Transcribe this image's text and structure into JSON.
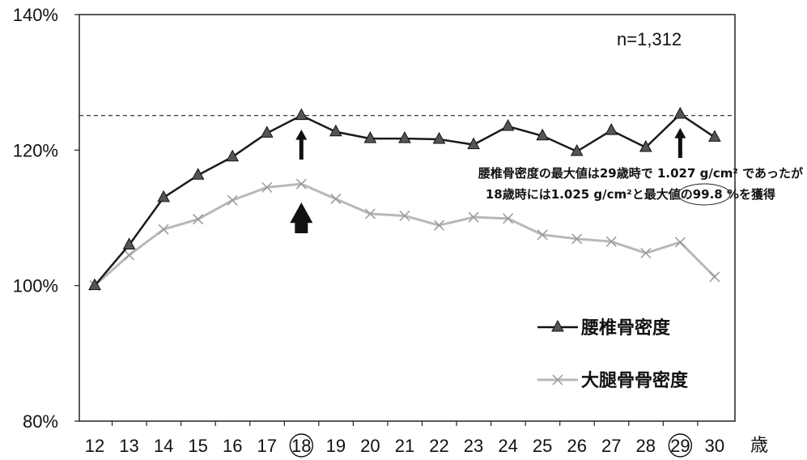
{
  "chart_data": {
    "type": "line",
    "x": [
      12,
      13,
      14,
      15,
      16,
      17,
      18,
      19,
      20,
      21,
      22,
      23,
      24,
      25,
      26,
      27,
      28,
      29,
      30
    ],
    "x_labels": [
      "12",
      "13",
      "14",
      "15",
      "16",
      "17",
      "18",
      "19",
      "20",
      "21",
      "22",
      "23",
      "24",
      "25",
      "26",
      "27",
      "28",
      "29",
      "30"
    ],
    "x_unit": "歳",
    "ylim": [
      80,
      140
    ],
    "y_ticks": [
      {
        "value": 80,
        "label": "80%"
      },
      {
        "value": 100,
        "label": "100%"
      },
      {
        "value": 120,
        "label": "120%"
      },
      {
        "value": 140,
        "label": "140%"
      }
    ],
    "series": [
      {
        "name": "腰椎骨密度",
        "color": "#1a1a1a",
        "marker": "triangle",
        "values": [
          100,
          106,
          113,
          116.3,
          119,
          122.5,
          125.1,
          122.7,
          121.7,
          121.7,
          121.6,
          120.8,
          123.5,
          122.1,
          119.8,
          122.9,
          120.4,
          125.3,
          121.9
        ]
      },
      {
        "name": "大腿骨骨密度",
        "color": "#b8b8b8",
        "marker": "x",
        "values": [
          100,
          104.5,
          108.3,
          109.8,
          112.6,
          114.5,
          115,
          112.8,
          110.6,
          110.3,
          108.9,
          110.1,
          109.9,
          107.5,
          106.9,
          106.5,
          104.8,
          106.4,
          101.3
        ]
      }
    ],
    "reference_line": {
      "value": 125.1,
      "style": "dashed"
    },
    "highlighted_ages": [
      "18",
      "29"
    ],
    "annotations": {
      "n": "n=1,312",
      "line1": "腰椎骨密度の最大値は29歳時で 1.027 g/cm² であったが",
      "line2": "18歳時には1.025 g/cm²と最大値の99.8 %を獲得"
    },
    "grid": false,
    "legend_position": "bottom-right"
  }
}
